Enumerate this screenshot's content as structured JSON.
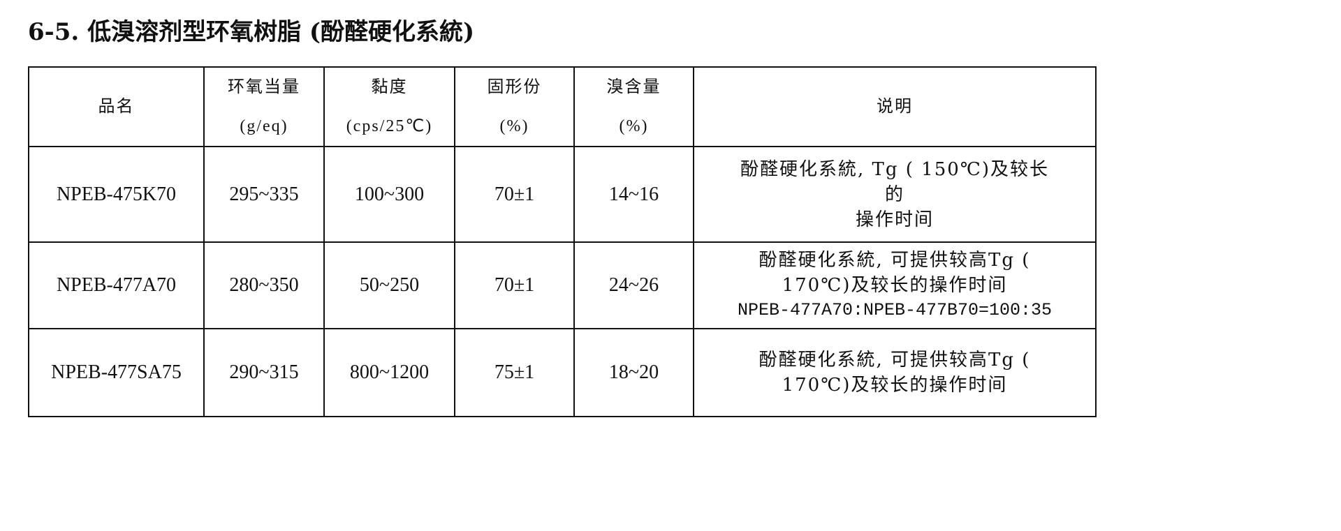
{
  "title": "6-5. 低溴溶剂型环氧树脂 (酚醛硬化系統)",
  "table": {
    "headers": [
      {
        "label": "品名",
        "unit": ""
      },
      {
        "label": "环氧当量",
        "unit": "(g/eq)"
      },
      {
        "label": "黏度",
        "unit": "(cps/25℃)"
      },
      {
        "label": "固形份",
        "unit": "(%)"
      },
      {
        "label": "溴含量",
        "unit": "(%)"
      },
      {
        "label": "说明",
        "unit": ""
      }
    ],
    "rows": [
      {
        "name": "NPEB-475K70",
        "epoxy_equivalent": "295~335",
        "viscosity": "100~300",
        "solids": "70±1",
        "bromine": "14~16",
        "note": [
          "酚醛硬化系統, Tg ( 150℃)及较长",
          "的",
          "操作时间"
        ]
      },
      {
        "name": "NPEB-477A70",
        "epoxy_equivalent": "280~350",
        "viscosity": "50~250",
        "solids": "70±1",
        "bromine": "24~26",
        "note": [
          "酚醛硬化系統, 可提供较高Tg (",
          "170℃)及较长的操作时间",
          "NPEB-477A70:NPEB-477B70=100:35"
        ]
      },
      {
        "name": "NPEB-477SA75",
        "epoxy_equivalent": "290~315",
        "viscosity": "800~1200",
        "solids": "75±1",
        "bromine": "18~20",
        "note": [
          "酚醛硬化系統, 可提供较高Tg (",
          "170℃)及较长的操作时间"
        ]
      }
    ]
  }
}
